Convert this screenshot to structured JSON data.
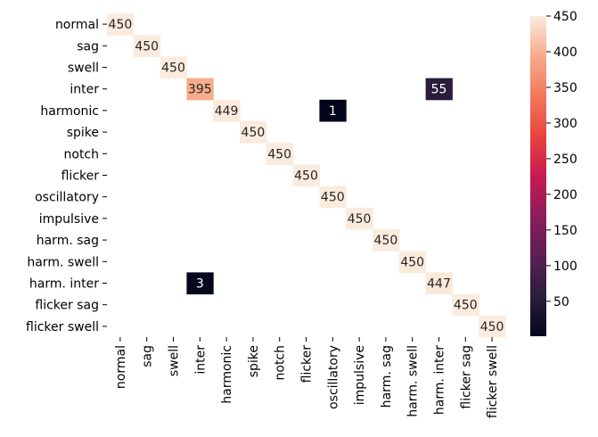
{
  "chart_data": {
    "type": "heatmap",
    "rows": [
      "normal",
      "sag",
      "swell",
      "inter",
      "harmonic",
      "spike",
      "notch",
      "flicker",
      "oscillatory",
      "impulsive",
      "harm. sag",
      "harm. swell",
      "harm. inter",
      "flicker sag",
      "flicker swell"
    ],
    "columns": [
      "normal",
      "sag",
      "swell",
      "inter",
      "harmonic",
      "spike",
      "notch",
      "flicker",
      "oscillatory",
      "impulsive",
      "harm. sag",
      "harm. swell",
      "harm. inter",
      "flicker sag",
      "flicker swell"
    ],
    "cells": [
      {
        "row": "normal",
        "col": "normal",
        "value": 450
      },
      {
        "row": "sag",
        "col": "sag",
        "value": 450
      },
      {
        "row": "swell",
        "col": "swell",
        "value": 450
      },
      {
        "row": "inter",
        "col": "inter",
        "value": 395
      },
      {
        "row": "inter",
        "col": "harm. inter",
        "value": 55
      },
      {
        "row": "harmonic",
        "col": "harmonic",
        "value": 449
      },
      {
        "row": "harmonic",
        "col": "oscillatory",
        "value": 1
      },
      {
        "row": "spike",
        "col": "spike",
        "value": 450
      },
      {
        "row": "notch",
        "col": "notch",
        "value": 450
      },
      {
        "row": "flicker",
        "col": "flicker",
        "value": 450
      },
      {
        "row": "oscillatory",
        "col": "oscillatory",
        "value": 450
      },
      {
        "row": "impulsive",
        "col": "impulsive",
        "value": 450
      },
      {
        "row": "harm. sag",
        "col": "harm. sag",
        "value": 450
      },
      {
        "row": "harm. swell",
        "col": "harm. swell",
        "value": 450
      },
      {
        "row": "harm. inter",
        "col": "inter",
        "value": 3
      },
      {
        "row": "harm. inter",
        "col": "harm. inter",
        "value": 447
      },
      {
        "row": "flicker sag",
        "col": "flicker sag",
        "value": 450
      },
      {
        "row": "flicker swell",
        "col": "flicker swell",
        "value": 450
      }
    ],
    "zero_cells_shown": false,
    "colorbar": {
      "colormap": "rocket",
      "vmin": 1,
      "vmax": 450,
      "ticks": [
        50,
        100,
        150,
        200,
        250,
        300,
        350,
        400,
        450
      ]
    },
    "title": "",
    "xlabel": "",
    "ylabel": ""
  }
}
